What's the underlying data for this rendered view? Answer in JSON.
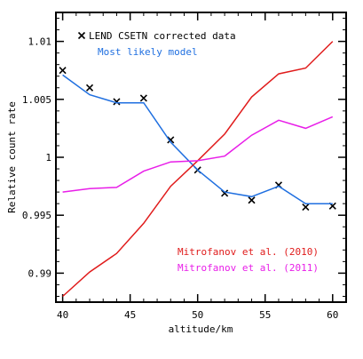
{
  "chart_data": {
    "type": "line",
    "xlabel": "altitude/km",
    "ylabel": "Relative count rate",
    "xlim": [
      39.5,
      61
    ],
    "ylim": [
      0.9875,
      1.0125
    ],
    "xticks": [
      40,
      45,
      50,
      55,
      60
    ],
    "xtick_labels": [
      "40",
      "45",
      "50",
      "55",
      "60"
    ],
    "yticks": [
      0.99,
      0.995,
      1.0,
      1.005,
      1.01
    ],
    "ytick_labels": [
      "0.99",
      "0.995",
      "1",
      "1.005",
      "1.01"
    ],
    "grid": false,
    "legend_position": "top-left",
    "series": [
      {
        "name": "LEND CSETN corrected data",
        "kind": "markers",
        "marker": "x",
        "color": "#000000",
        "x": [
          40,
          42,
          44,
          46,
          48,
          50,
          52,
          54,
          56,
          58,
          60
        ],
        "y": [
          1.0075,
          1.006,
          1.0048,
          1.0051,
          1.0015,
          0.9989,
          0.9969,
          0.9963,
          0.9976,
          0.9957,
          0.9958
        ]
      },
      {
        "name": "Most likely model",
        "kind": "line",
        "color": "#1f6fe0",
        "x": [
          40,
          42,
          44,
          46,
          48,
          50,
          52,
          54,
          56,
          58,
          60
        ],
        "y": [
          1.0071,
          1.0054,
          1.0047,
          1.0047,
          1.0013,
          0.9989,
          0.997,
          0.9966,
          0.9975,
          0.996,
          0.996
        ]
      },
      {
        "name": "Mitrofanov et al. (2010)",
        "kind": "line",
        "color": "#e01b1b",
        "x": [
          40,
          42,
          44,
          46,
          48,
          50,
          52,
          54,
          56,
          58,
          60
        ],
        "y": [
          0.988,
          0.9901,
          0.9917,
          0.9943,
          0.9975,
          0.9997,
          1.002,
          1.0052,
          1.0072,
          1.0077,
          1.01
        ]
      },
      {
        "name": "Mitrofanov et al. (2011)",
        "kind": "line",
        "color": "#e81ee8",
        "x": [
          40,
          42,
          44,
          46,
          48,
          50,
          52,
          54,
          56,
          58,
          60
        ],
        "y": [
          0.997,
          0.9973,
          0.9974,
          0.9988,
          0.9996,
          0.9997,
          1.0001,
          1.0019,
          1.0032,
          1.0025,
          1.0035
        ]
      }
    ]
  }
}
